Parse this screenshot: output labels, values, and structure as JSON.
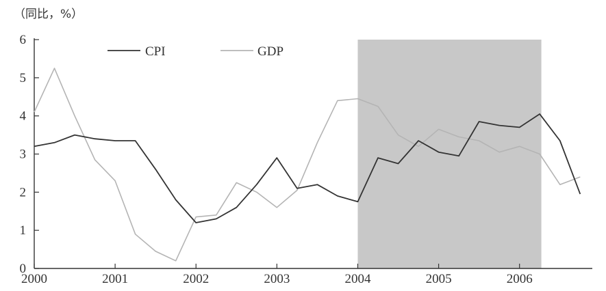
{
  "chart_data": {
    "type": "line",
    "unit_label": "（同比，%）",
    "ylim": [
      0,
      6
    ],
    "yticks": [
      "0",
      "1",
      "2",
      "3",
      "4",
      "5",
      "6"
    ],
    "xlim": [
      2000,
      2006.9
    ],
    "xticks": [
      "2000",
      "2001",
      "2002",
      "2003",
      "2004",
      "2005",
      "2006"
    ],
    "grid": false,
    "legend_position": "top-left",
    "shaded_region": {
      "x_start": 2004.0,
      "x_end": 2006.27,
      "color": "#c8c8c8"
    },
    "series": [
      {
        "name": "CPI",
        "color": "#333333",
        "x": [
          2000.0,
          2000.25,
          2000.5,
          2000.75,
          2001.0,
          2001.25,
          2001.5,
          2001.75,
          2002.0,
          2002.25,
          2002.5,
          2002.75,
          2003.0,
          2003.25,
          2003.5,
          2003.75,
          2004.0,
          2004.25,
          2004.5,
          2004.75,
          2005.0,
          2005.25,
          2005.5,
          2005.75,
          2006.0,
          2006.25,
          2006.5,
          2006.75
        ],
        "values": [
          3.2,
          3.3,
          3.5,
          3.4,
          3.35,
          3.35,
          2.6,
          1.8,
          1.2,
          1.3,
          1.6,
          2.2,
          2.9,
          2.1,
          2.2,
          1.9,
          1.75,
          2.9,
          2.75,
          3.35,
          3.05,
          2.95,
          3.85,
          3.75,
          3.7,
          4.05,
          3.35,
          1.95
        ]
      },
      {
        "name": "GDP",
        "color": "#b4b4b4",
        "x": [
          2000.0,
          2000.25,
          2000.5,
          2000.75,
          2001.0,
          2001.25,
          2001.5,
          2001.75,
          2002.0,
          2002.25,
          2002.5,
          2002.75,
          2003.0,
          2003.25,
          2003.5,
          2003.75,
          2004.0,
          2004.25,
          2004.5,
          2004.75,
          2005.0,
          2005.25,
          2005.5,
          2005.75,
          2006.0,
          2006.25,
          2006.5,
          2006.75
        ],
        "values": [
          4.1,
          5.25,
          4.0,
          2.85,
          2.3,
          0.9,
          0.45,
          0.2,
          1.35,
          1.4,
          2.25,
          2.0,
          1.6,
          2.05,
          3.3,
          4.4,
          4.45,
          4.25,
          3.5,
          3.2,
          3.65,
          3.45,
          3.35,
          3.05,
          3.2,
          3.0,
          2.2,
          2.4
        ]
      }
    ]
  }
}
